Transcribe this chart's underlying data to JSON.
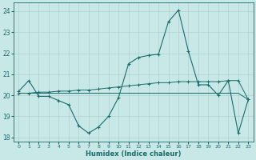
{
  "title": "",
  "xlabel": "Humidex (Indice chaleur)",
  "xlim": [
    -0.5,
    23.5
  ],
  "ylim": [
    17.8,
    24.4
  ],
  "yticks": [
    18,
    19,
    20,
    21,
    22,
    23,
    24
  ],
  "xticks": [
    0,
    1,
    2,
    3,
    4,
    5,
    6,
    7,
    8,
    9,
    10,
    11,
    12,
    13,
    14,
    15,
    16,
    17,
    18,
    19,
    20,
    21,
    22,
    23
  ],
  "bg_color": "#c8e8e8",
  "grid_color": "#b0d0d0",
  "line_color": "#1a6b6b",
  "series1_x": [
    0,
    1,
    2,
    3,
    4,
    5,
    6,
    7,
    8,
    9,
    10,
    11,
    12,
    13,
    14,
    15,
    16,
    17,
    18,
    19,
    20,
    21,
    22,
    23
  ],
  "series1_y": [
    20.2,
    20.7,
    19.95,
    19.95,
    19.75,
    19.55,
    18.55,
    18.2,
    18.5,
    19.0,
    19.9,
    21.5,
    21.8,
    21.9,
    21.95,
    23.5,
    24.05,
    22.1,
    20.5,
    20.5,
    20.0,
    20.7,
    18.2,
    19.8
  ],
  "series2_x": [
    0,
    1,
    2,
    3,
    4,
    5,
    6,
    7,
    8,
    9,
    10,
    11,
    12,
    13,
    14,
    15,
    16,
    17,
    18,
    19,
    20,
    21,
    22,
    23
  ],
  "series2_y": [
    20.1,
    20.1,
    20.1,
    20.1,
    20.1,
    20.1,
    20.1,
    20.1,
    20.1,
    20.1,
    20.1,
    20.1,
    20.1,
    20.1,
    20.1,
    20.1,
    20.1,
    20.1,
    20.1,
    20.1,
    20.1,
    20.1,
    20.1,
    19.8
  ],
  "series3_x": [
    0,
    1,
    2,
    3,
    4,
    5,
    6,
    7,
    8,
    9,
    10,
    11,
    12,
    13,
    14,
    15,
    16,
    17,
    18,
    19,
    20,
    21,
    22,
    23
  ],
  "series3_y": [
    20.1,
    20.1,
    20.15,
    20.15,
    20.2,
    20.2,
    20.25,
    20.25,
    20.3,
    20.35,
    20.4,
    20.45,
    20.5,
    20.55,
    20.6,
    20.6,
    20.65,
    20.65,
    20.65,
    20.65,
    20.65,
    20.7,
    20.7,
    19.8
  ]
}
